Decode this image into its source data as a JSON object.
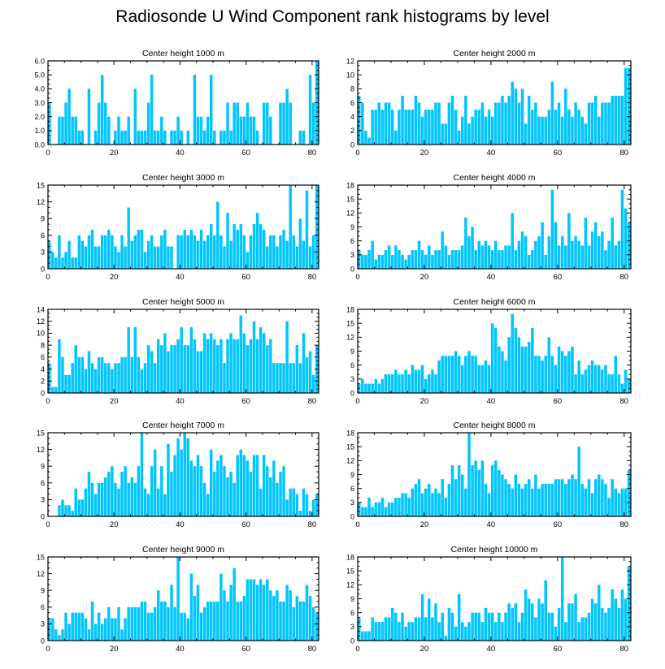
{
  "title": "Radiosonde U Wind Component rank histograms by level",
  "colors": {
    "bar": "#00C5FF",
    "axis": "#000000",
    "background": "#ffffff"
  },
  "chart_data": [
    {
      "type": "bar",
      "title": "Center height 1000 m",
      "xlim": [
        0,
        82
      ],
      "ylim": [
        0,
        6
      ],
      "xticks": [
        "0",
        "20",
        "40",
        "60",
        "80"
      ],
      "yticks": [
        "0.0",
        "1.0",
        "2.0",
        "3.0",
        "4.0",
        "5.0",
        "6.0"
      ],
      "values": [
        3,
        0,
        0,
        2,
        2,
        3,
        4,
        2,
        2,
        1,
        1,
        0,
        4,
        0,
        1,
        3,
        5,
        3,
        2,
        0,
        1,
        2,
        1,
        1,
        2,
        0,
        4,
        1,
        1,
        1,
        3,
        5,
        1,
        1,
        2,
        1,
        0,
        1,
        1,
        2,
        1,
        0,
        1,
        0,
        5,
        2,
        2,
        1,
        2,
        5,
        1,
        0,
        1,
        1,
        3,
        1,
        3,
        3,
        2,
        2,
        3,
        2,
        2,
        1,
        0,
        3,
        3,
        2,
        0,
        0,
        3,
        3,
        4,
        3,
        0,
        0,
        1,
        1,
        0,
        5,
        3,
        6
      ]
    },
    {
      "type": "bar",
      "title": "Center height 2000 m",
      "xlim": [
        0,
        82
      ],
      "ylim": [
        0,
        12
      ],
      "xticks": [
        "0",
        "20",
        "40",
        "60",
        "80"
      ],
      "yticks": [
        "0",
        "2",
        "4",
        "6",
        "8",
        "10",
        "12"
      ],
      "values": [
        7,
        6,
        2,
        1,
        5,
        5,
        6,
        5,
        6,
        6,
        5,
        2,
        5,
        7,
        5,
        5,
        5,
        7,
        6,
        4,
        5,
        5,
        5,
        6,
        6,
        3,
        3,
        6,
        7,
        5,
        2,
        4,
        7,
        3,
        4,
        5,
        5,
        6,
        4,
        5,
        4,
        6,
        6,
        7,
        6,
        7,
        9,
        8,
        6,
        8,
        3,
        7,
        5,
        6,
        4,
        4,
        4,
        5,
        9,
        5,
        6,
        4,
        8,
        5,
        4,
        6,
        5,
        4,
        3,
        6,
        6,
        7,
        4,
        6,
        6,
        6,
        7,
        7,
        7,
        7,
        11,
        11
      ]
    },
    {
      "type": "bar",
      "title": "Center height 3000 m",
      "xlim": [
        0,
        82
      ],
      "ylim": [
        0,
        15
      ],
      "xticks": [
        "0",
        "20",
        "40",
        "60",
        "80"
      ],
      "yticks": [
        "0",
        "3",
        "6",
        "9",
        "12",
        "15"
      ],
      "values": [
        5,
        3,
        2,
        6,
        2,
        3,
        5,
        2,
        2,
        6,
        5,
        4,
        6,
        7,
        4,
        4,
        6,
        6,
        7,
        6,
        4,
        3,
        6,
        4,
        11,
        5,
        6,
        7,
        7,
        3,
        5,
        6,
        4,
        4,
        6,
        7,
        4,
        4,
        0,
        6,
        6,
        7,
        6,
        7,
        6,
        5,
        7,
        5,
        6,
        8,
        6,
        12,
        6,
        4,
        10,
        5,
        8,
        7,
        8,
        6,
        3,
        6,
        8,
        10,
        8,
        7,
        4,
        6,
        6,
        4,
        6,
        7,
        5,
        15,
        6,
        4,
        9,
        5,
        14,
        4,
        6,
        15
      ]
    },
    {
      "type": "bar",
      "title": "Center height 4000 m",
      "xlim": [
        0,
        82
      ],
      "ylim": [
        0,
        18
      ],
      "xticks": [
        "0",
        "20",
        "40",
        "60",
        "80"
      ],
      "yticks": [
        "0",
        "3",
        "6",
        "9",
        "12",
        "15",
        "18"
      ],
      "values": [
        4,
        3,
        3,
        4,
        6,
        2,
        3,
        3,
        4,
        5,
        3,
        5,
        4,
        3,
        2,
        3,
        4,
        4,
        6,
        4,
        3,
        5,
        3,
        4,
        4,
        8,
        5,
        3,
        4,
        4,
        4,
        5,
        11,
        7,
        9,
        4,
        6,
        5,
        6,
        5,
        4,
        6,
        4,
        4,
        5,
        5,
        12,
        4,
        6,
        8,
        7,
        3,
        4,
        6,
        7,
        10,
        3,
        7,
        17,
        10,
        5,
        7,
        5,
        12,
        6,
        7,
        6,
        5,
        11,
        5,
        8,
        10,
        7,
        8,
        4,
        6,
        11,
        5,
        6,
        17,
        13,
        10
      ]
    },
    {
      "type": "bar",
      "title": "Center height 5000 m",
      "xlim": [
        0,
        82
      ],
      "ylim": [
        0,
        14
      ],
      "xticks": [
        "0",
        "20",
        "40",
        "60",
        "80"
      ],
      "yticks": [
        "0",
        "2",
        "4",
        "6",
        "8",
        "10",
        "12",
        "14"
      ],
      "values": [
        5,
        1,
        1,
        9,
        6,
        3,
        3,
        5,
        8,
        6,
        6,
        4,
        7,
        5,
        4,
        6,
        6,
        5,
        5,
        4,
        5,
        5,
        6,
        6,
        11,
        6,
        11,
        6,
        4,
        5,
        8,
        7,
        5,
        9,
        8,
        10,
        7,
        8,
        8,
        9,
        11,
        8,
        8,
        11,
        9,
        7,
        7,
        10,
        9,
        10,
        9,
        8,
        9,
        5,
        9,
        10,
        9,
        9,
        13,
        10,
        8,
        9,
        12,
        9,
        11,
        10,
        8,
        9,
        5,
        5,
        5,
        5,
        12,
        5,
        5,
        8,
        5,
        10,
        6,
        7,
        3,
        8
      ]
    },
    {
      "type": "bar",
      "title": "Center height 6000 m",
      "xlim": [
        0,
        82
      ],
      "ylim": [
        0,
        18
      ],
      "xticks": [
        "0",
        "20",
        "40",
        "60",
        "80"
      ],
      "yticks": [
        "0",
        "3",
        "6",
        "9",
        "12",
        "15",
        "18"
      ],
      "values": [
        2,
        3,
        2,
        2,
        2,
        3,
        2,
        3,
        4,
        4,
        4,
        5,
        4,
        4,
        5,
        4,
        6,
        5,
        5,
        6,
        3,
        4,
        5,
        4,
        7,
        8,
        8,
        8,
        8,
        9,
        8,
        6,
        8,
        9,
        8,
        8,
        6,
        6,
        7,
        6,
        15,
        14,
        10,
        9,
        7,
        12,
        17,
        14,
        12,
        10,
        10,
        11,
        14,
        8,
        8,
        7,
        8,
        12,
        8,
        6,
        10,
        9,
        8,
        9,
        10,
        4,
        7,
        4,
        5,
        6,
        7,
        6,
        6,
        5,
        6,
        4,
        4,
        8,
        4,
        2,
        5,
        3
      ]
    },
    {
      "type": "bar",
      "title": "Center height 7000 m",
      "xlim": [
        0,
        82
      ],
      "ylim": [
        0,
        15
      ],
      "xticks": [
        "0",
        "20",
        "40",
        "60",
        "80"
      ],
      "yticks": [
        "0",
        "3",
        "6",
        "9",
        "12",
        "15"
      ],
      "values": [
        0,
        0,
        0,
        2,
        3,
        2,
        2,
        1,
        5,
        3,
        3,
        5,
        8,
        6,
        4,
        6,
        6,
        7,
        8,
        9,
        6,
        5,
        8,
        9,
        6,
        7,
        6,
        9,
        15,
        5,
        4,
        9,
        12,
        5,
        9,
        4,
        13,
        8,
        11,
        14,
        12,
        15,
        14,
        10,
        9,
        11,
        9,
        6,
        4,
        12,
        8,
        10,
        11,
        9,
        7,
        8,
        6,
        11,
        12,
        11,
        10,
        8,
        11,
        11,
        5,
        11,
        9,
        7,
        10,
        6,
        8,
        9,
        3,
        5,
        5,
        4,
        1,
        5,
        4,
        1,
        3,
        4
      ]
    },
    {
      "type": "bar",
      "title": "Center height 8000 m",
      "xlim": [
        0,
        82
      ],
      "ylim": [
        0,
        18
      ],
      "xticks": [
        "0",
        "20",
        "40",
        "60",
        "80"
      ],
      "yticks": [
        "0",
        "3",
        "6",
        "9",
        "12",
        "15",
        "18"
      ],
      "values": [
        3,
        2,
        2,
        4,
        2,
        3,
        3,
        4,
        2,
        3,
        3,
        4,
        4,
        5,
        5,
        4,
        6,
        7,
        8,
        5,
        6,
        7,
        5,
        6,
        5,
        8,
        4,
        7,
        11,
        8,
        11,
        9,
        6,
        18,
        11,
        12,
        10,
        12,
        7,
        5,
        11,
        12,
        10,
        9,
        8,
        7,
        6,
        9,
        7,
        6,
        7,
        8,
        6,
        9,
        6,
        7,
        7,
        7,
        7,
        8,
        8,
        8,
        7,
        8,
        9,
        8,
        15,
        7,
        6,
        8,
        5,
        8,
        9,
        8,
        7,
        4,
        8,
        6,
        5,
        6,
        6,
        10
      ]
    },
    {
      "type": "bar",
      "title": "Center height 9000 m",
      "xlim": [
        0,
        82
      ],
      "ylim": [
        0,
        15
      ],
      "xticks": [
        "0",
        "20",
        "40",
        "60",
        "80"
      ],
      "yticks": [
        "0",
        "3",
        "6",
        "9",
        "12",
        "15"
      ],
      "values": [
        4,
        4,
        2,
        1,
        2,
        5,
        3,
        5,
        5,
        5,
        5,
        4,
        2,
        7,
        3,
        5,
        3,
        4,
        6,
        4,
        4,
        6,
        2,
        4,
        6,
        6,
        6,
        6,
        7,
        7,
        5,
        5,
        6,
        9,
        7,
        7,
        6,
        10,
        6,
        15,
        5,
        5,
        4,
        12,
        8,
        10,
        5,
        6,
        7,
        7,
        7,
        7,
        12,
        9,
        7,
        10,
        13,
        7,
        7,
        8,
        11,
        11,
        11,
        10,
        11,
        10,
        11,
        9,
        8,
        9,
        7,
        7,
        10,
        9,
        6,
        8,
        7,
        7,
        10,
        8,
        6,
        5
      ]
    },
    {
      "type": "bar",
      "title": "Center height 10000 m",
      "xlim": [
        0,
        82
      ],
      "ylim": [
        0,
        18
      ],
      "xticks": [
        "0",
        "20",
        "40",
        "60",
        "80"
      ],
      "yticks": [
        "0",
        "3",
        "6",
        "9",
        "12",
        "15",
        "18"
      ],
      "values": [
        5,
        2,
        2,
        2,
        5,
        4,
        4,
        4,
        5,
        5,
        7,
        6,
        4,
        6,
        3,
        4,
        4,
        5,
        5,
        10,
        5,
        9,
        5,
        8,
        4,
        6,
        1,
        7,
        6,
        3,
        10,
        4,
        3,
        4,
        6,
        6,
        6,
        4,
        7,
        6,
        6,
        4,
        6,
        4,
        6,
        8,
        7,
        8,
        4,
        6,
        11,
        9,
        8,
        5,
        9,
        8,
        13,
        6,
        6,
        3,
        7,
        18,
        4,
        8,
        8,
        10,
        4,
        5,
        5,
        6,
        9,
        8,
        12,
        7,
        6,
        7,
        11,
        9,
        7,
        11,
        9,
        16
      ]
    }
  ]
}
